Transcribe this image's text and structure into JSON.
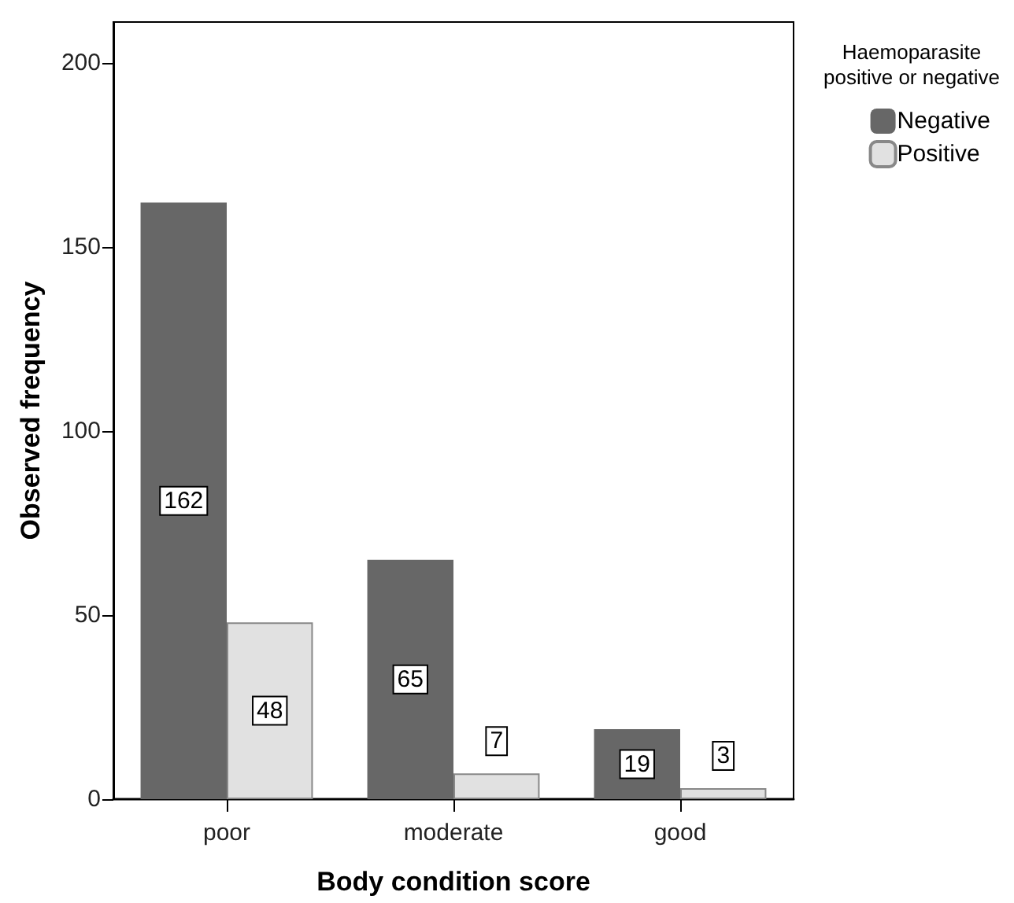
{
  "chart_data": {
    "type": "bar",
    "xlabel": "Body condition score",
    "ylabel": "Observed frequency",
    "legend_title": "Haemoparasite\npositive or negative",
    "categories": [
      "poor",
      "moderate",
      "good"
    ],
    "series": [
      {
        "name": "Negative",
        "color": "#676767",
        "values": [
          162,
          65,
          19
        ]
      },
      {
        "name": "Positive",
        "color": "#e1e1e1",
        "values": [
          48,
          7,
          3
        ]
      }
    ],
    "ylim": [
      0,
      211
    ],
    "yticks": [
      0,
      50,
      100,
      150,
      200
    ],
    "grid": false,
    "legend": "top right",
    "data_labels": true
  }
}
